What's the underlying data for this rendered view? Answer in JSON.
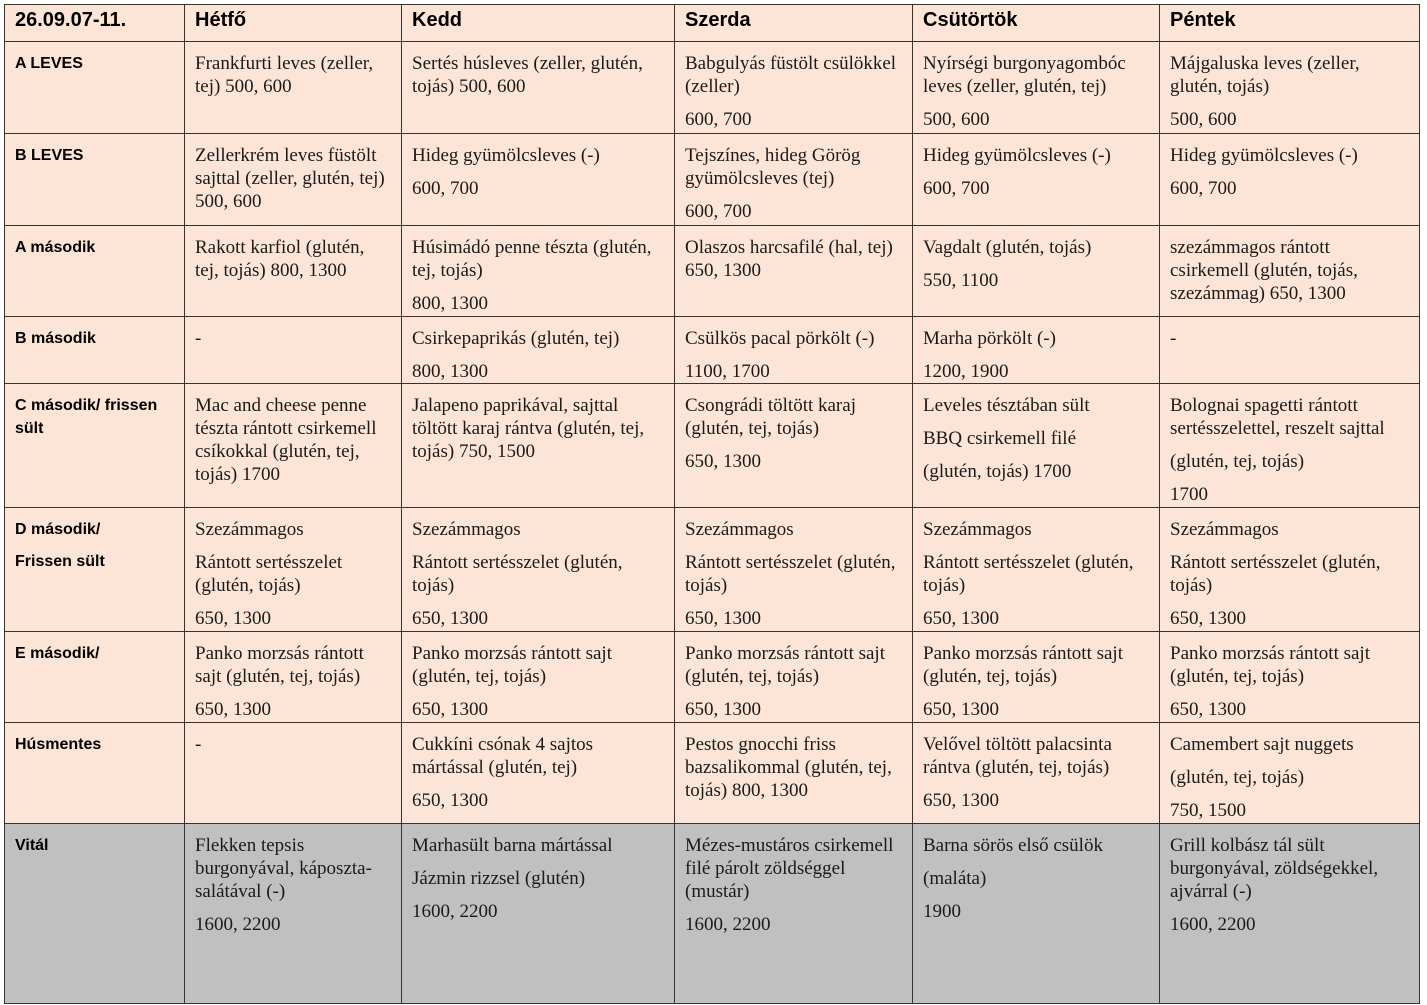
{
  "header": {
    "date": "26.09.07-11.",
    "days": [
      "Hétfő",
      "Kedd",
      "Szerda",
      "Csütörtök",
      "Péntek"
    ]
  },
  "rows": [
    {
      "label": [
        "A LEVES"
      ],
      "cells": [
        [
          "Frankfurti leves (zeller, tej) 500, 600"
        ],
        [
          "Sertés húsleves (zeller, glutén, tojás) 500, 600"
        ],
        [
          "Babgulyás füstölt csülökkel (zeller)",
          "600, 700"
        ],
        [
          "Nyírségi burgonyagombóc leves (zeller, glutén, tej)",
          "500, 600"
        ],
        [
          "Májgaluska leves (zeller, glutén, tojás)",
          "500, 600"
        ]
      ]
    },
    {
      "label": [
        "B LEVES"
      ],
      "cells": [
        [
          "Zellerkrém leves füstölt sajttal (zeller, glutén, tej) 500, 600"
        ],
        [
          "Hideg gyümölcsleves (-)",
          "600, 700"
        ],
        [
          "Tejszínes, hideg Görög gyümölcsleves (tej)",
          "600, 700"
        ],
        [
          "Hideg gyümölcsleves (-)",
          "600, 700"
        ],
        [
          "Hideg gyümölcsleves (-)",
          "600, 700"
        ]
      ]
    },
    {
      "label": [
        "A második"
      ],
      "cells": [
        [
          "Rakott karfiol (glutén, tej, tojás) 800, 1300"
        ],
        [
          "Húsimádó penne tészta (glutén, tej, tojás)",
          "800, 1300"
        ],
        [
          "Olaszos harcsafilé (hal, tej) 650, 1300"
        ],
        [
          "Vagdalt (glutén, tojás)",
          "550, 1100"
        ],
        [
          "szezámmagos rántott csirkemell (glutén, tojás, szezámmag) 650, 1300"
        ]
      ]
    },
    {
      "label": [
        "B második"
      ],
      "cells": [
        [
          "-"
        ],
        [
          "Csirkepaprikás (glutén, tej)",
          "800, 1300"
        ],
        [
          "Csülkös pacal pörkölt (-)",
          "1100, 1700"
        ],
        [
          "Marha pörkölt (-)",
          "1200, 1900"
        ],
        [
          "-"
        ]
      ]
    },
    {
      "label": [
        "C második/ frissen sült"
      ],
      "cells": [
        [
          "Mac and cheese penne tészta rántott csirkemell csíkokkal (glutén, tej, tojás) 1700"
        ],
        [
          "Jalapeno paprikával, sajttal töltött karaj rántva (glutén, tej, tojás) 750, 1500"
        ],
        [
          "Csongrádi töltött karaj (glutén, tej, tojás)",
          "650, 1300"
        ],
        [
          "Leveles tésztában sült",
          "BBQ csirkemell filé",
          "(glutén, tojás) 1700"
        ],
        [
          "Bolognai spagetti rántott sertésszelettel, reszelt sajttal",
          "(glutén, tej, tojás)",
          "1700"
        ]
      ]
    },
    {
      "label": [
        "D második/",
        "Frissen sült"
      ],
      "cells": [
        [
          "Szezámmagos",
          "Rántott sertésszelet (glutén, tojás)",
          "650, 1300"
        ],
        [
          "Szezámmagos",
          "Rántott sertésszelet (glutén, tojás)",
          "650, 1300"
        ],
        [
          "Szezámmagos",
          "Rántott sertésszelet (glutén, tojás)",
          "650, 1300"
        ],
        [
          "Szezámmagos",
          "Rántott sertésszelet (glutén, tojás)",
          "650, 1300"
        ],
        [
          "Szezámmagos",
          "Rántott sertésszelet (glutén, tojás)",
          "650, 1300"
        ]
      ]
    },
    {
      "label": [
        "E második/"
      ],
      "cells": [
        [
          "Panko morzsás rántott sajt (glutén, tej, tojás)",
          "650, 1300"
        ],
        [
          "Panko morzsás rántott sajt (glutén, tej, tojás)",
          "650, 1300"
        ],
        [
          "Panko morzsás rántott sajt (glutén, tej, tojás)",
          "650, 1300"
        ],
        [
          "Panko morzsás rántott sajt (glutén, tej, tojás)",
          "650, 1300"
        ],
        [
          "Panko morzsás rántott sajt (glutén, tej, tojás)",
          "650, 1300"
        ]
      ]
    },
    {
      "label": [
        "Húsmentes"
      ],
      "cells": [
        [
          "-"
        ],
        [
          "Cukkíni csónak 4 sajtos mártással (glutén, tej)",
          "650, 1300"
        ],
        [
          "Pestos gnocchi friss bazsalikommal (glutén, tej, tojás) 800, 1300"
        ],
        [
          "Velővel töltött palacsinta rántva (glutén, tej, tojás)",
          "650, 1300"
        ],
        [
          "Camembert sajt nuggets",
          "(glutén, tej, tojás)",
          "750, 1500"
        ]
      ]
    },
    {
      "label": [
        "Vitál"
      ],
      "cells": [
        [
          "Flekken tepsis burgonyával, káposzta-salátával (-)",
          "1600, 2200"
        ],
        [
          "Marhasült barna mártással",
          "Jázmin rizzsel (glutén)",
          "1600, 2200"
        ],
        [
          "Mézes-mustáros csirkemell filé párolt zöldséggel (mustár)",
          "1600, 2200"
        ],
        [
          "Barna sörös első csülök",
          "(maláta)",
          "1900"
        ],
        [
          "Grill kolbász tál sült burgonyával, zöldségekkel, ajvárral (-)",
          "1600, 2200"
        ]
      ]
    }
  ]
}
